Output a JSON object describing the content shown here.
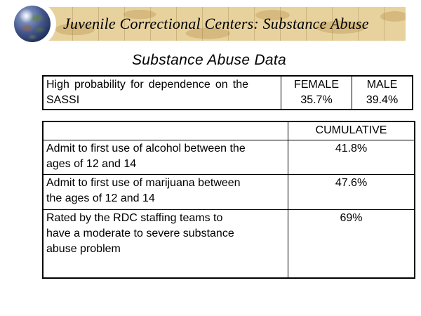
{
  "banner": {
    "title": "Juvenile Correctional Centers: Substance Abuse"
  },
  "slide_title": "Substance Abuse Data",
  "sassi_table": {
    "row_label": "High probability for dependence on the SASSI",
    "columns": [
      {
        "header": "FEMALE",
        "value": "35.7%"
      },
      {
        "header": "MALE",
        "value": "39.4%"
      }
    ]
  },
  "cumulative_table": {
    "value_header": "CUMULATIVE",
    "rows": [
      {
        "label": "Admit to first use of alcohol between the ages of 12 and 14",
        "value": "41.8%"
      },
      {
        "label": "Admit to first use of marijuana between the ages of 12 and 14",
        "value": "47.6%"
      },
      {
        "label": "Rated by the RDC staffing teams to have a moderate to severe substance abuse problem",
        "value": "69%"
      }
    ]
  },
  "icons": {
    "globe": "globe-icon"
  },
  "colors": {
    "background": "#ffffff",
    "banner_background": "#e7d29e",
    "banner_pattern": "#d5b97e",
    "globe_blue": "#2c4276",
    "table_border": "#000000",
    "text": "#000000"
  }
}
